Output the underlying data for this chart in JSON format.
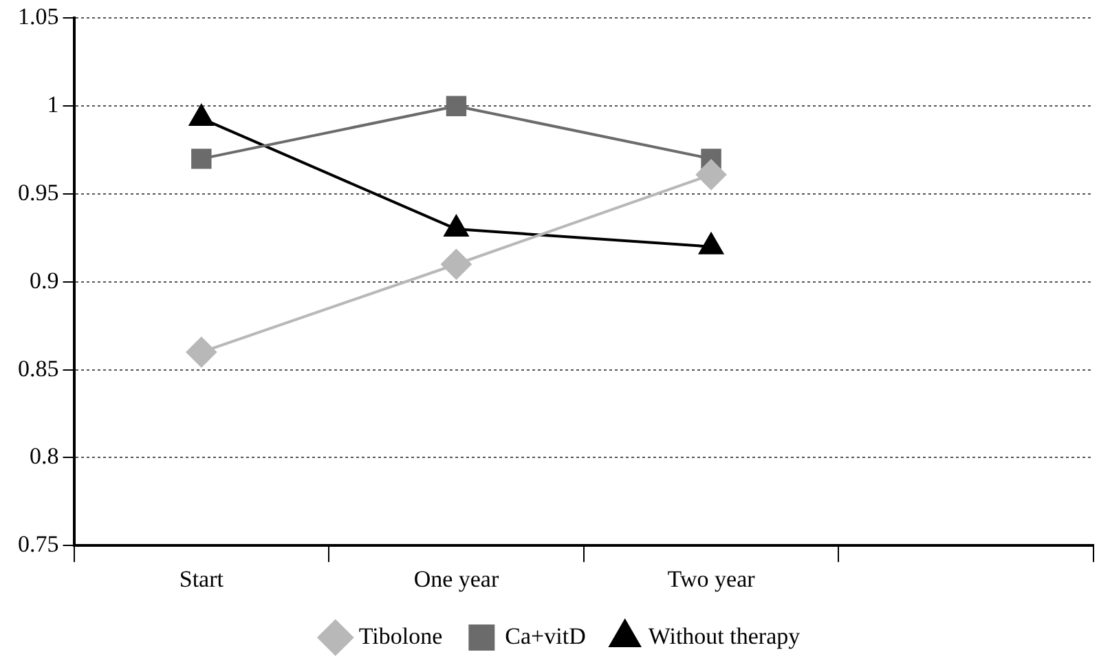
{
  "chart_data": {
    "type": "line",
    "categories": [
      "Start",
      "One year",
      "Two year",
      null
    ],
    "series": [
      {
        "name": "Tibolone",
        "color": "#b8b8b8",
        "marker": "diamond",
        "values": [
          0.86,
          0.91,
          0.961,
          null
        ]
      },
      {
        "name": "Ca+vitD",
        "color": "#6b6b6b",
        "marker": "square",
        "values": [
          0.97,
          1.0,
          0.97,
          null
        ]
      },
      {
        "name": "Without therapy",
        "color": "#000000",
        "marker": "triangle",
        "values": [
          0.993,
          0.93,
          0.92,
          null
        ]
      }
    ],
    "ylim": [
      0.75,
      1.05
    ],
    "yticks": [
      0.75,
      0.8,
      0.85,
      0.9,
      0.95,
      1,
      1.05
    ],
    "grid": "y",
    "legend": "bottom"
  }
}
